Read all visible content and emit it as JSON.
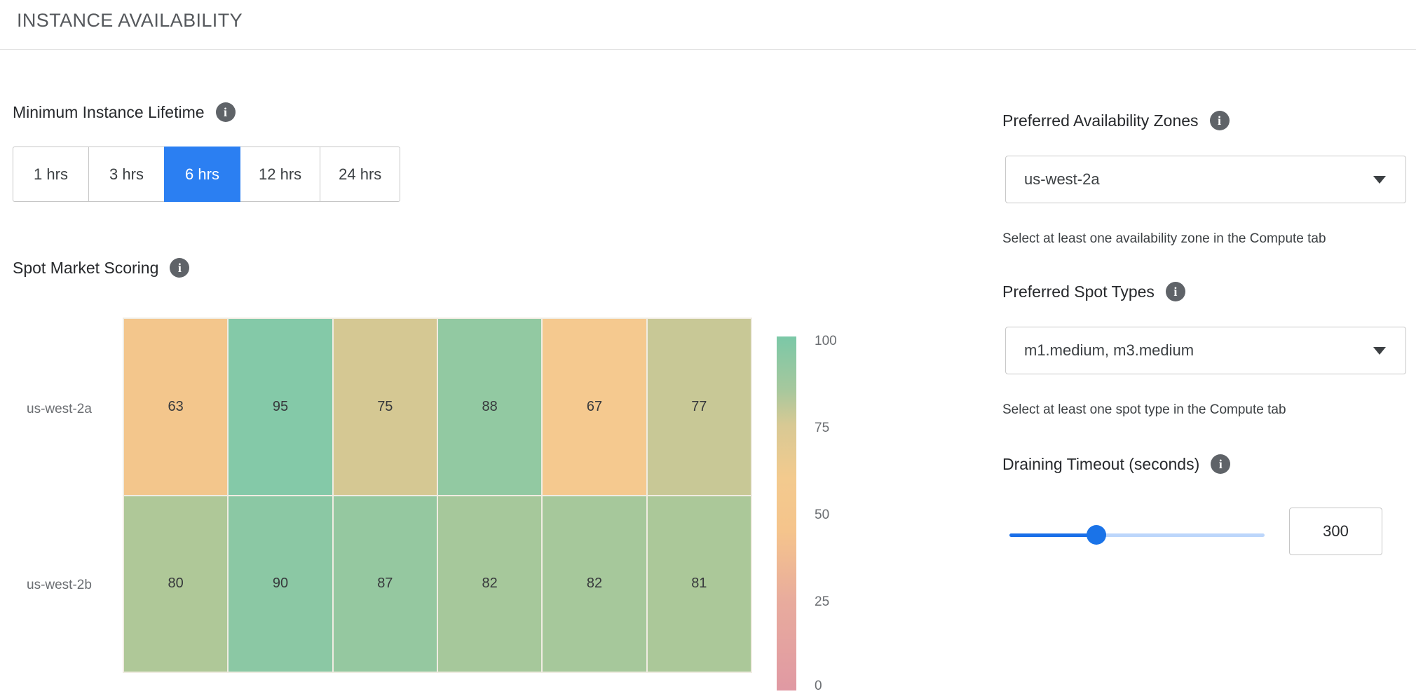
{
  "header": {
    "title": "INSTANCE AVAILABILITY"
  },
  "icons": {
    "info_glyph": "i"
  },
  "lifetime": {
    "label": "Minimum Instance Lifetime",
    "options": [
      {
        "label": "1 hrs",
        "selected": false
      },
      {
        "label": "3 hrs",
        "selected": false
      },
      {
        "label": "6 hrs",
        "selected": true
      },
      {
        "label": "12 hrs",
        "selected": false
      },
      {
        "label": "24 hrs",
        "selected": false
      }
    ]
  },
  "spot_scoring": {
    "label": "Spot Market Scoring"
  },
  "chart_data": {
    "type": "heatmap",
    "title": "Spot Market Scoring",
    "columns": 6,
    "rows": [
      {
        "label": "us-west-2a",
        "values": [
          63,
          95,
          75,
          88,
          67,
          77
        ],
        "colors": [
          "#f3c68c",
          "#84c9a8",
          "#d5c893",
          "#92c9a2",
          "#f5c98f",
          "#c8c896"
        ]
      },
      {
        "label": "us-west-2b",
        "values": [
          80,
          90,
          87,
          82,
          82,
          81
        ],
        "colors": [
          "#afc898",
          "#8bc8a4",
          "#95c8a0",
          "#a6c89b",
          "#a6c89b",
          "#abc899"
        ]
      }
    ],
    "scale": {
      "min": 0,
      "max": 100,
      "ticks": [
        "100",
        "75",
        "50",
        "25",
        "0"
      ]
    },
    "colorbar_gradient": [
      "#7bc8a7 0%",
      "#a6c89d 15%",
      "#d8c994 25%",
      "#f3ca8e 40%",
      "#f5c48c 55%",
      "#e8ab9d 75%",
      "#e099a3 100%"
    ],
    "legend_position": "right"
  },
  "zones": {
    "label": "Preferred Availability Zones",
    "selected_value": "us-west-2a",
    "helper": "Select at least one availability zone in the Compute tab"
  },
  "spot_types": {
    "label": "Preferred Spot Types",
    "selected_value": "m1.medium, m3.medium",
    "helper": "Select at least one spot type in the Compute tab"
  },
  "draining": {
    "label": "Draining Timeout (seconds)",
    "value": "300",
    "slider_percent": 34
  }
}
